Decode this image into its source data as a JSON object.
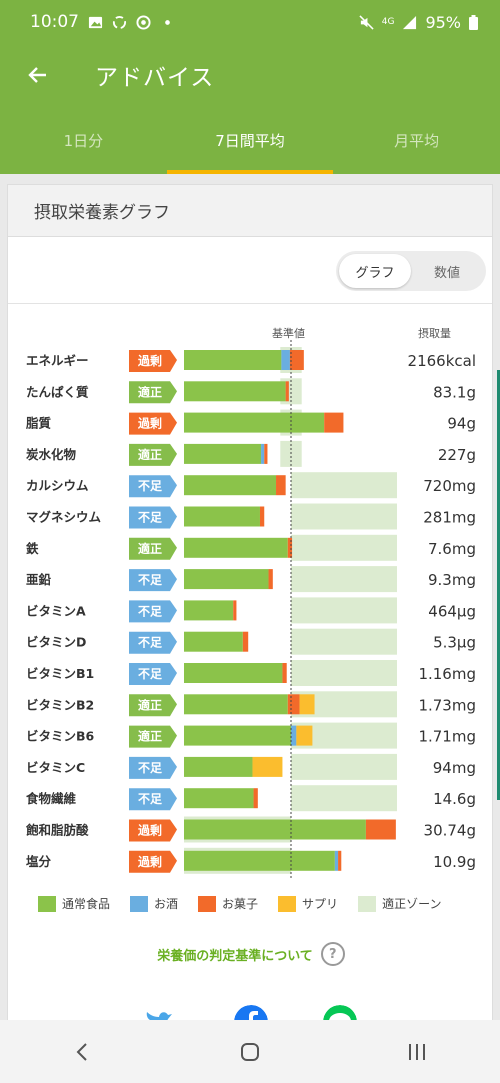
{
  "status_bar": {
    "time": "10:07",
    "battery": "95%",
    "network": "4G"
  },
  "app_bar": {
    "title": "アドバイス"
  },
  "tabs": [
    {
      "label": "1日分",
      "active": false
    },
    {
      "label": "7日間平均",
      "active": true
    },
    {
      "label": "月平均",
      "active": false
    }
  ],
  "card": {
    "title": "摂取栄養素グラフ",
    "toggle": {
      "graph": "グラフ",
      "value": "数値",
      "selected": "グラフ"
    },
    "col_base": "基準値",
    "col_intake": "摂取量"
  },
  "colors": {
    "normal": "#8bc34a",
    "alcohol": "#6aaee0",
    "sweets": "#f26a2a",
    "supplement": "#fbbd2e",
    "zone": "#dcebd0",
    "over": "#f26a2a",
    "ok": "#86bd4b",
    "under": "#6aaee0"
  },
  "chart_data": {
    "type": "bar",
    "stacked": true,
    "baseline_label": "基準値",
    "legend": [
      {
        "key": "normal",
        "label": "通常食品"
      },
      {
        "key": "alcohol",
        "label": "お酒"
      },
      {
        "key": "sweets",
        "label": "お菓子"
      },
      {
        "key": "supplement",
        "label": "サプリ"
      },
      {
        "key": "zone",
        "label": "適正ゾーン"
      }
    ],
    "rows": [
      {
        "name": "エネルギー",
        "status": "過剰",
        "status_key": "over",
        "intake": "2166kcal",
        "normal": 0.91,
        "alcohol": 0.08,
        "sweets": 0.13,
        "supplement": 0,
        "zone_min": 0.9,
        "zone_max": 1.1
      },
      {
        "name": "たんぱく質",
        "status": "適正",
        "status_key": "ok",
        "intake": "83.1g",
        "normal": 0.95,
        "alcohol": 0,
        "sweets": 0.03,
        "supplement": 0,
        "zone_min": 0.9,
        "zone_max": 1.1
      },
      {
        "name": "脂質",
        "status": "過剰",
        "status_key": "over",
        "intake": "94g",
        "normal": 1.31,
        "alcohol": 0,
        "sweets": 0.18,
        "supplement": 0,
        "zone_min": 0.9,
        "zone_max": 1.1
      },
      {
        "name": "炭水化物",
        "status": "適正",
        "status_key": "ok",
        "intake": "227g",
        "normal": 0.72,
        "alcohol": 0.03,
        "sweets": 0.03,
        "supplement": 0,
        "zone_min": 0.9,
        "zone_max": 1.1
      },
      {
        "name": "カルシウム",
        "status": "不足",
        "status_key": "under",
        "intake": "720mg",
        "normal": 0.86,
        "alcohol": 0,
        "sweets": 0.09,
        "supplement": 0,
        "zone_min": 1.0,
        "zone_max": 2.0
      },
      {
        "name": "マグネシウム",
        "status": "不足",
        "status_key": "under",
        "intake": "281mg",
        "normal": 0.71,
        "alcohol": 0,
        "sweets": 0.04,
        "supplement": 0,
        "zone_min": 1.0,
        "zone_max": 2.0
      },
      {
        "name": "鉄",
        "status": "適正",
        "status_key": "ok",
        "intake": "7.6mg",
        "normal": 0.97,
        "alcohol": 0,
        "sweets": 0.04,
        "supplement": 0,
        "zone_min": 1.0,
        "zone_max": 2.0
      },
      {
        "name": "亜鉛",
        "status": "不足",
        "status_key": "under",
        "intake": "9.3mg",
        "normal": 0.79,
        "alcohol": 0,
        "sweets": 0.04,
        "supplement": 0,
        "zone_min": 1.0,
        "zone_max": 2.0
      },
      {
        "name": "ビタミンA",
        "status": "不足",
        "status_key": "under",
        "intake": "464μg",
        "normal": 0.46,
        "alcohol": 0,
        "sweets": 0.03,
        "supplement": 0,
        "zone_min": 1.0,
        "zone_max": 2.0
      },
      {
        "name": "ビタミンD",
        "status": "不足",
        "status_key": "under",
        "intake": "5.3μg",
        "normal": 0.55,
        "alcohol": 0,
        "sweets": 0.05,
        "supplement": 0,
        "zone_min": 1.0,
        "zone_max": 2.0
      },
      {
        "name": "ビタミンB1",
        "status": "不足",
        "status_key": "under",
        "intake": "1.16mg",
        "normal": 0.92,
        "alcohol": 0,
        "sweets": 0.04,
        "supplement": 0,
        "zone_min": 1.0,
        "zone_max": 2.0
      },
      {
        "name": "ビタミンB2",
        "status": "適正",
        "status_key": "ok",
        "intake": "1.73mg",
        "normal": 0.97,
        "alcohol": 0,
        "sweets": 0.11,
        "supplement": 0.14,
        "zone_min": 1.0,
        "zone_max": 2.0
      },
      {
        "name": "ビタミンB6",
        "status": "適正",
        "status_key": "ok",
        "intake": "1.71mg",
        "normal": 1.0,
        "alcohol": 0.05,
        "sweets": 0,
        "supplement": 0.15,
        "zone_min": 1.0,
        "zone_max": 2.0
      },
      {
        "name": "ビタミンC",
        "status": "不足",
        "status_key": "under",
        "intake": "94mg",
        "normal": 0.64,
        "alcohol": 0,
        "sweets": 0,
        "supplement": 0.28,
        "zone_min": 1.0,
        "zone_max": 2.0
      },
      {
        "name": "食物繊維",
        "status": "不足",
        "status_key": "under",
        "intake": "14.6g",
        "normal": 0.65,
        "alcohol": 0,
        "sweets": 0.04,
        "supplement": 0,
        "zone_min": 1.0,
        "zone_max": 2.0
      },
      {
        "name": "飽和脂肪酸",
        "status": "過剰",
        "status_key": "over",
        "intake": "30.74g",
        "normal": 1.7,
        "alcohol": 0,
        "sweets": 0.28,
        "supplement": 0,
        "zone_min": 0,
        "zone_max": 1.0
      },
      {
        "name": "塩分",
        "status": "過剰",
        "status_key": "over",
        "intake": "10.9g",
        "normal": 1.41,
        "alcohol": 0.03,
        "sweets": 0.03,
        "supplement": 0,
        "zone_min": 0,
        "zone_max": 1.0
      }
    ]
  },
  "criteria_link": "栄養価の判定基準について",
  "help_glyph": "?",
  "share_icons": [
    "twitter-icon",
    "facebook-icon",
    "line-icon"
  ],
  "nav": [
    "back-icon",
    "home-icon",
    "recents-icon"
  ]
}
